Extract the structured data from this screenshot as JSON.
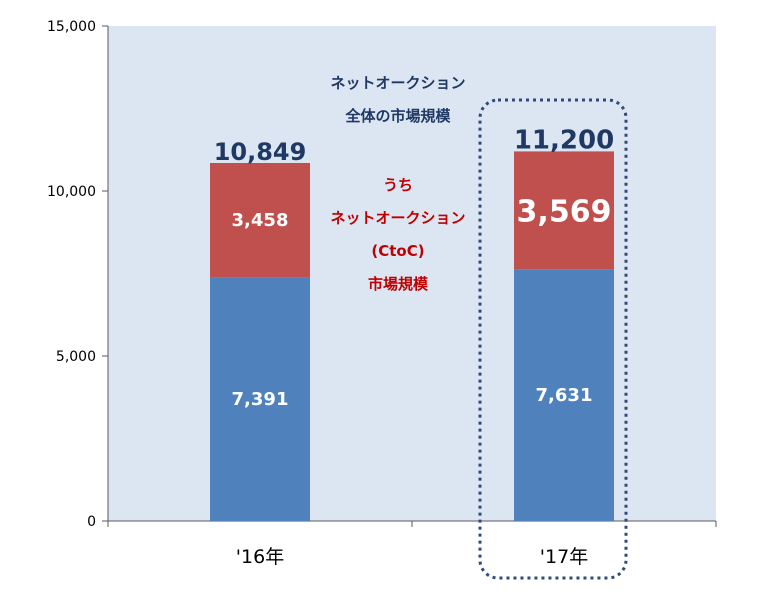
{
  "chart_data": {
    "type": "bar",
    "stacked": true,
    "categories": [
      "'16年",
      "'17年"
    ],
    "series": [
      {
        "values": [
          7391,
          7631
        ],
        "color": "#4f81bd"
      },
      {
        "values": [
          3458,
          3569
        ],
        "color": "#c0504d"
      }
    ],
    "totals": [
      10849,
      11200
    ],
    "value_labels": {
      "bottom": [
        "7,391",
        "7,631"
      ],
      "top": [
        "3,458",
        "3,569"
      ],
      "totals": [
        "10,849",
        "11,200"
      ]
    },
    "ylim": [
      0,
      15000
    ],
    "yticks": [
      0,
      5000,
      10000,
      15000
    ],
    "ytick_labels": [
      "0",
      "5,000",
      "10,000",
      "15,000"
    ],
    "title": "",
    "xlabel": "",
    "ylabel": "",
    "grid": false,
    "plot_background": "#dce6f2",
    "highlight": {
      "category_index": 1,
      "style": "dotted-rounded-box",
      "color": "#1f3864"
    },
    "annotations": {
      "total_market": [
        "ネットオークション",
        "全体の市場規模"
      ],
      "ctoc_market": [
        "うち",
        "ネットオークション",
        "(CtoC)",
        "市場規模"
      ]
    },
    "colors": {
      "annotation_total": "#1f3864",
      "annotation_ctoc": "#c00000"
    }
  }
}
